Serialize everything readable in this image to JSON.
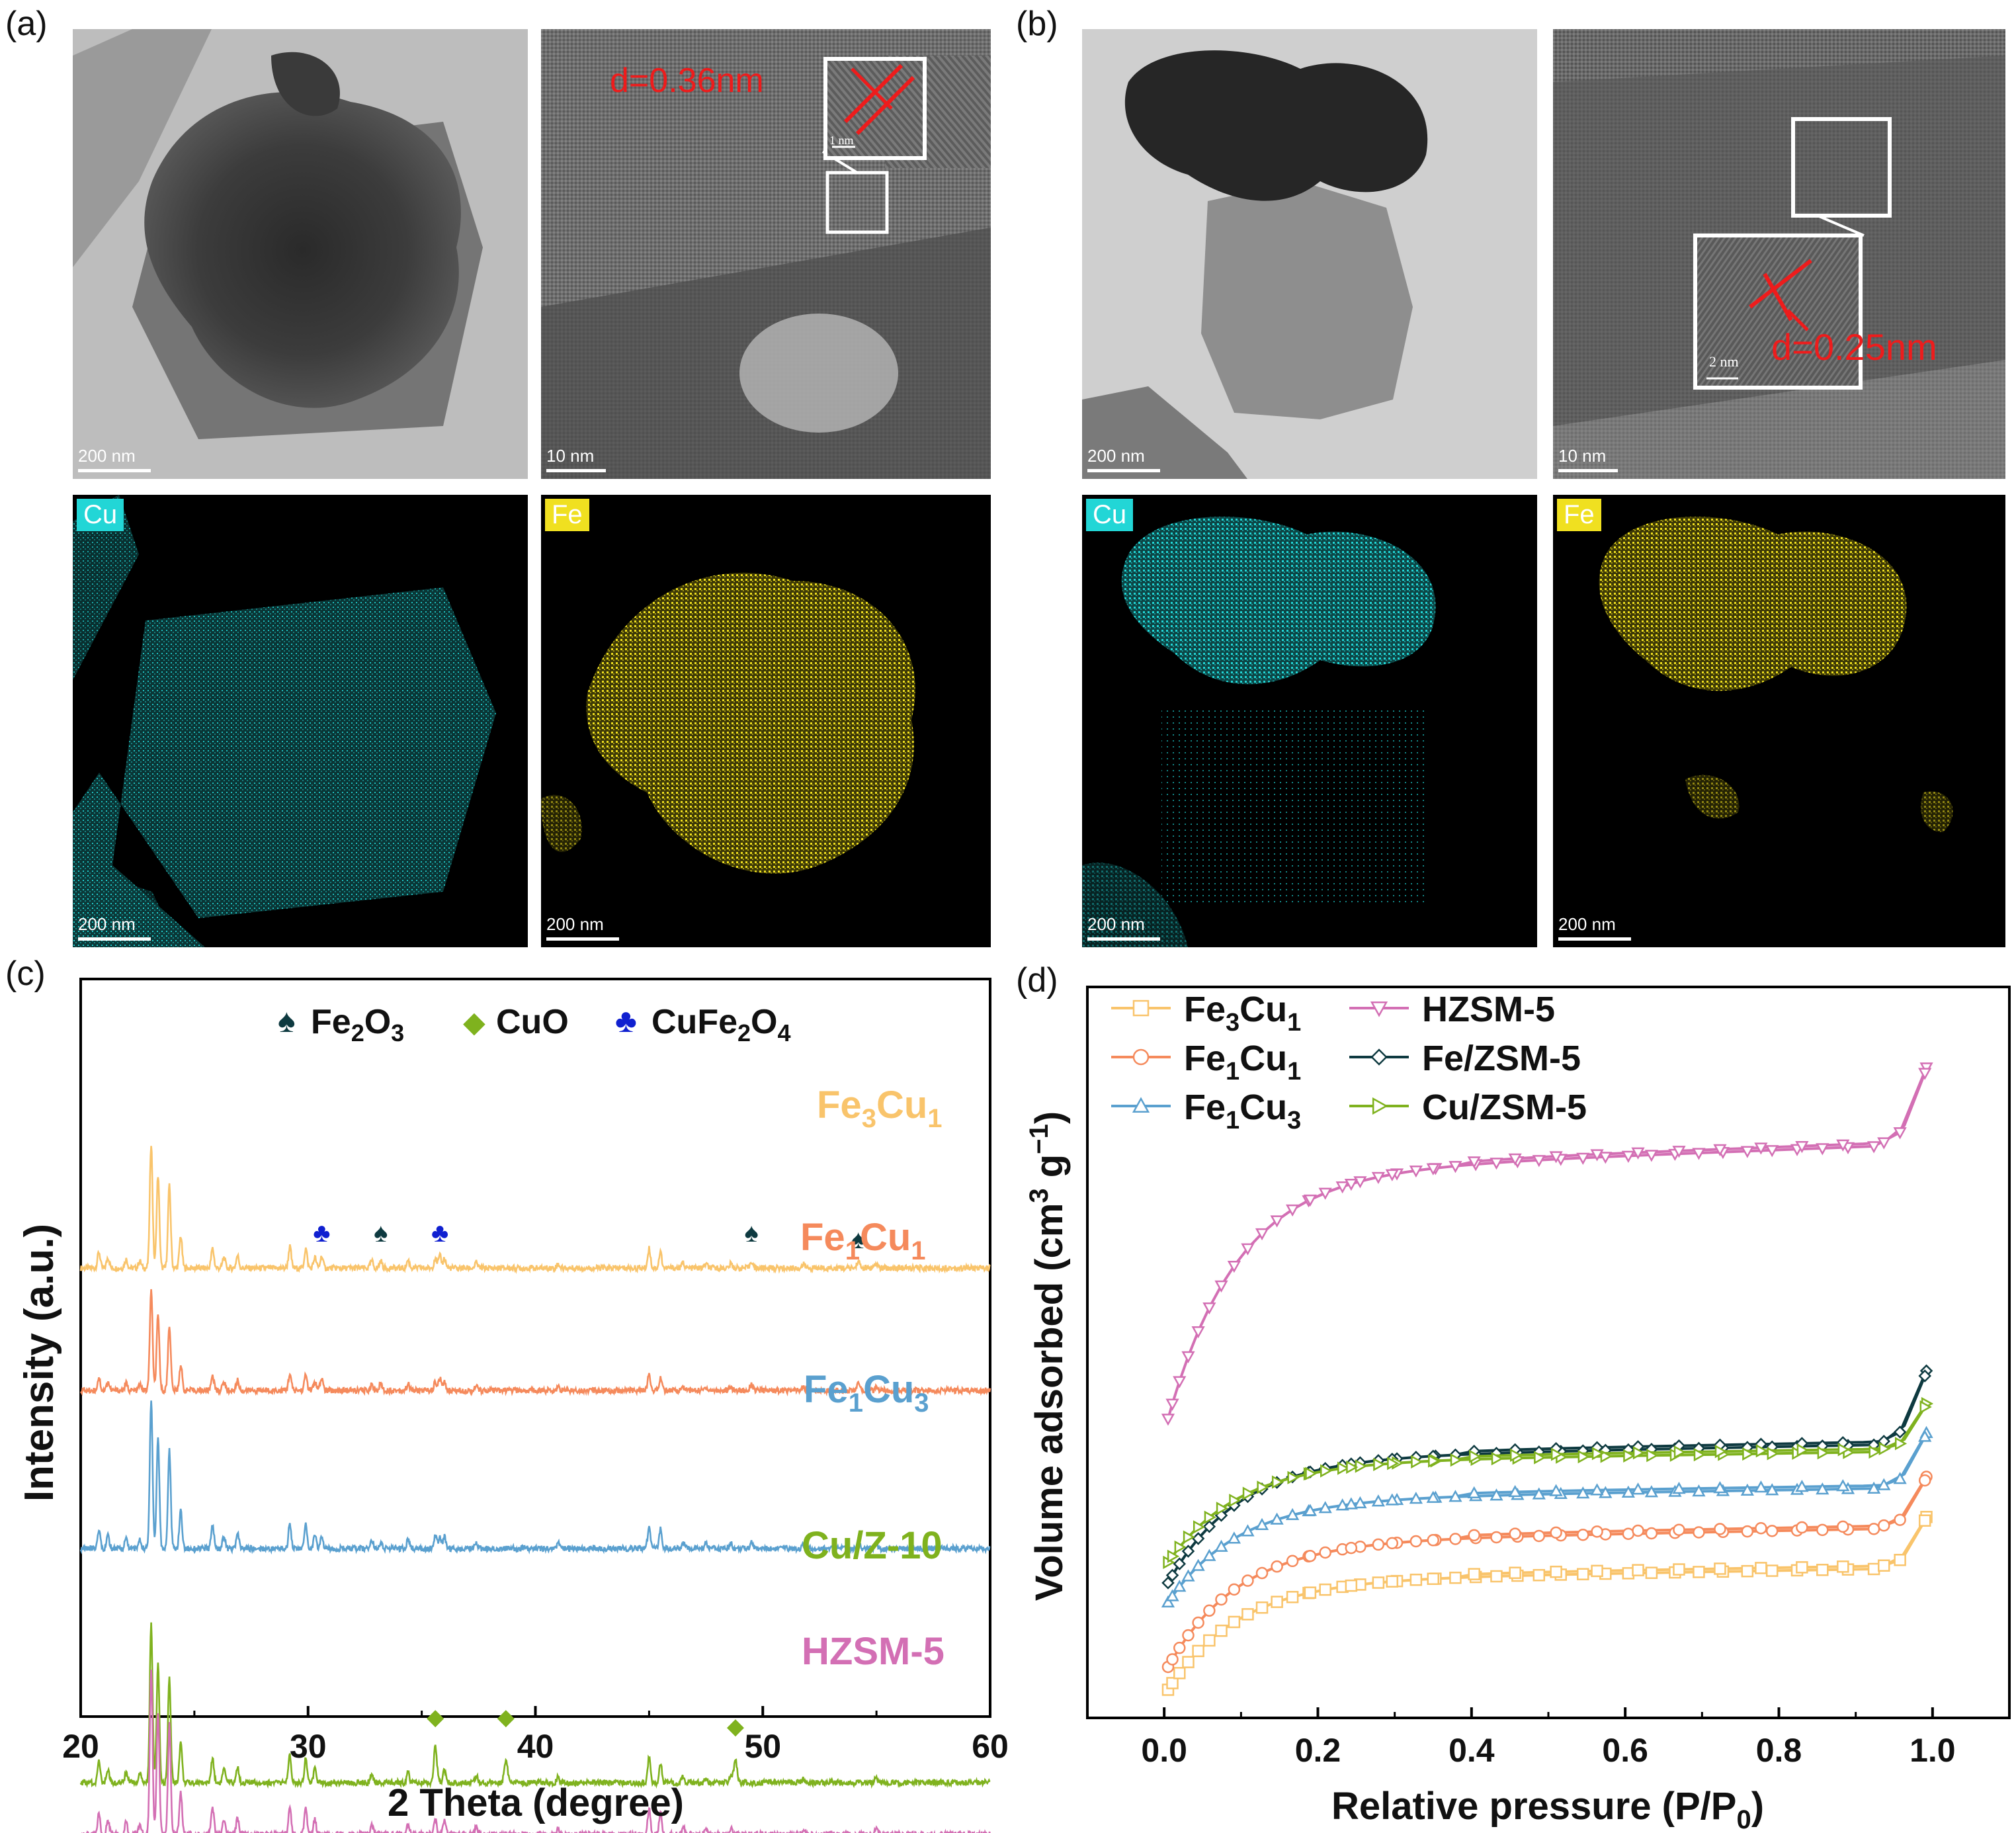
{
  "figure": {
    "panel_a_label": "(a)",
    "panel_b_label": "(b)",
    "panel_c_label": "(c)",
    "panel_d_label": "(d)"
  },
  "panel_a": {
    "tem_scale": "200 nm",
    "hrtem_scale": "10 nm",
    "inset_scale": "1 nm",
    "lattice_label": "d=0.36nm",
    "cu_map_label": "Cu",
    "cu_map_scale": "200 nm",
    "fe_map_label": "Fe",
    "fe_map_scale": "200 nm"
  },
  "panel_b": {
    "tem_scale": "200 nm",
    "hrtem_scale": "10 nm",
    "inset_scale": "2 nm",
    "lattice_label": "d=0.25nm",
    "cu_map_label": "Cu",
    "cu_map_scale": "200 nm",
    "fe_map_label": "Fe",
    "fe_map_scale": "200 nm"
  },
  "colors": {
    "fe3cu1": "#F9C46B",
    "fe1cu1": "#F58A5C",
    "fe1cu3": "#5AA0CF",
    "cuz10": "#7FB21E",
    "hzsm5": "#D36FB4",
    "fezsm5": "#0E3A40",
    "cu_map": "#22D6D6",
    "fe_map": "#F0E020",
    "red": "#EE1C1C"
  },
  "chart_data": [
    {
      "type": "line",
      "panel": "c",
      "title": "",
      "xlabel": "2 Theta (degree)",
      "ylabel": "Intensity (a.u.)",
      "xlim": [
        20,
        60
      ],
      "xticks": [
        "20",
        "30",
        "40",
        "50",
        "60"
      ],
      "legend": {
        "fe2o3": {
          "symbol": "♠",
          "text": "Fe2O3"
        },
        "cuo": {
          "symbol": "◆",
          "text": "CuO"
        },
        "cufe2o4": {
          "symbol": "♣",
          "text": "CuFe2O4"
        }
      },
      "series": [
        {
          "name": "Fe3Cu1",
          "label_main_1": "Fe",
          "label_sub_1": "3",
          "label_main_2": "Cu",
          "label_sub_2": "1",
          "offset": 4
        },
        {
          "name": "Fe1Cu1",
          "label_main_1": "Fe",
          "label_sub_1": "1",
          "label_main_2": "Cu",
          "label_sub_2": "1",
          "offset": 3
        },
        {
          "name": "Fe1Cu3",
          "label_main_1": "Fe",
          "label_sub_1": "1",
          "label_main_2": "Cu",
          "label_sub_2": "3",
          "offset": 2
        },
        {
          "name": "Cu/Z-10",
          "label": "Cu/Z-10",
          "offset": 1
        },
        {
          "name": "HZSM-5",
          "label": "HZSM-5",
          "offset": 0
        }
      ],
      "zsm5_peaks": [
        [
          20.8,
          0.45
        ],
        [
          21.2,
          0.3
        ],
        [
          22.0,
          0.25
        ],
        [
          22.6,
          0.2
        ],
        [
          23.1,
          3.5
        ],
        [
          23.4,
          2.6
        ],
        [
          23.9,
          2.3
        ],
        [
          24.4,
          0.9
        ],
        [
          25.8,
          0.55
        ],
        [
          26.3,
          0.3
        ],
        [
          26.9,
          0.35
        ],
        [
          29.2,
          0.6
        ],
        [
          29.9,
          0.55
        ],
        [
          30.3,
          0.3
        ],
        [
          32.8,
          0.2
        ],
        [
          34.4,
          0.22
        ],
        [
          35.6,
          0.3
        ],
        [
          36.0,
          0.28
        ],
        [
          37.4,
          0.15
        ],
        [
          41.0,
          0.12
        ],
        [
          45.0,
          0.55
        ],
        [
          45.5,
          0.45
        ],
        [
          46.5,
          0.15
        ],
        [
          47.5,
          0.12
        ],
        [
          48.6,
          0.12
        ],
        [
          51.8,
          0.1
        ],
        [
          55.0,
          0.12
        ]
      ],
      "cuo_markers": [
        35.6,
        38.7,
        48.8
      ],
      "cufe2o4_markers": [
        30.6,
        35.8
      ],
      "fe2o3_markers": [
        33.2,
        49.5,
        54.2
      ]
    },
    {
      "type": "line",
      "panel": "d",
      "title": "",
      "xlabel": "Relative pressure (P/P0)",
      "ylabel": "Volume adsorbed (cm3 g-1)",
      "xlim": [
        -0.1,
        1.1
      ],
      "xticks": [
        "0.0",
        "0.2",
        "0.4",
        "0.6",
        "0.8",
        "1.0"
      ],
      "legend": [
        {
          "main": "Fe",
          "sub1": "3",
          "main2": "Cu",
          "sub2": "1",
          "marker": "square"
        },
        {
          "main": "Fe",
          "sub1": "1",
          "main2": "Cu",
          "sub2": "1",
          "marker": "circle"
        },
        {
          "main": "Fe",
          "sub1": "1",
          "main2": "Cu",
          "sub2": "3",
          "marker": "triangle-up"
        },
        {
          "label": "HZSM-5",
          "marker": "triangle-down"
        },
        {
          "label": "Fe/ZSM-5",
          "marker": "diamond"
        },
        {
          "label": "Cu/ZSM-5",
          "marker": "triangle-right"
        }
      ],
      "isotherms": [
        {
          "name": "Fe3Cu1",
          "v0": 10,
          "plateau": 185,
          "end": 255
        },
        {
          "name": "Fe1Cu1",
          "v0": 40,
          "plateau": 240,
          "end": 310
        },
        {
          "name": "Fe1Cu3",
          "v0": 130,
          "plateau": 295,
          "end": 370
        },
        {
          "name": "HZSM-5",
          "v0": 370,
          "plateau": 765,
          "end": 870
        },
        {
          "name": "Fe/ZSM-5",
          "v0": 155,
          "plateau": 355,
          "end": 455
        },
        {
          "name": "Cu/ZSM-5",
          "v0": 185,
          "plateau": 345,
          "end": 410
        }
      ]
    }
  ]
}
